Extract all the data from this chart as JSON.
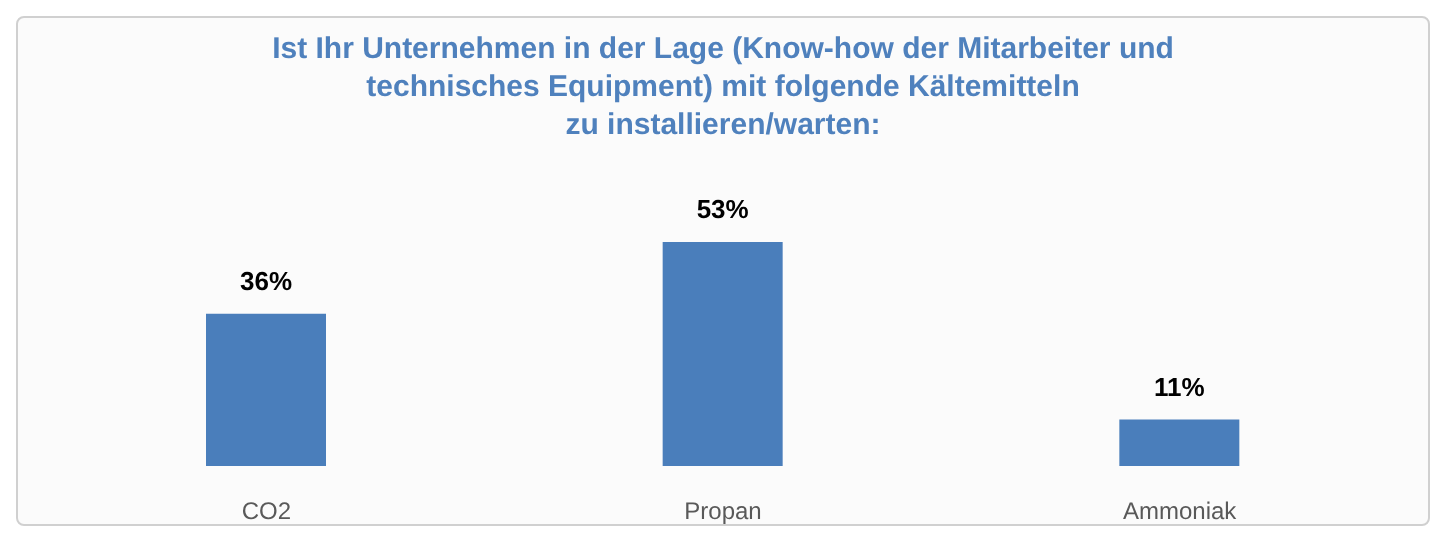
{
  "chart_data": {
    "type": "bar",
    "title": "Ist Ihr Unternehmen in der Lage (Know-how der Mitarbeiter und\ntechnisches Equipment) mit folgende Kältemitteln\nzu installieren/warten:",
    "categories": [
      "CO2",
      "Propan",
      "Ammoniak"
    ],
    "values": [
      36,
      53,
      11
    ],
    "color": "#4a7ebb",
    "value_labels": [
      "36%",
      "53%",
      "11%"
    ],
    "grid": false
  }
}
